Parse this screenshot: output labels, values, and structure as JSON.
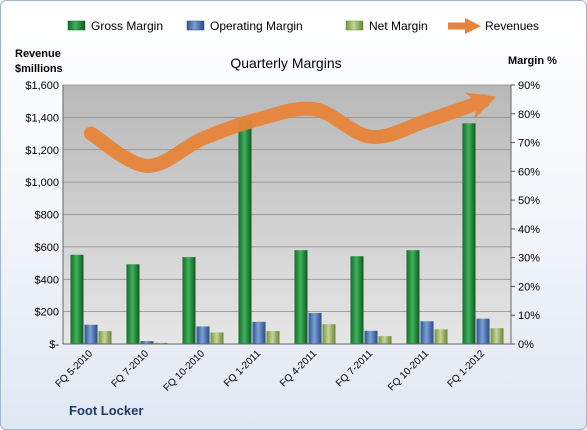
{
  "chart_data": {
    "type": "bar",
    "title": "Quarterly Margins",
    "company": "Foot Locker",
    "categories": [
      "FQ 5-2010",
      "FQ 7-2010",
      "FQ 10-2010",
      "FQ 1-2011",
      "FQ 4-2011",
      "FQ 7-2011",
      "FQ 10-2011",
      "FQ 1-2012"
    ],
    "left_axis": {
      "label_line1": "Revenue",
      "label_line2": "$millions",
      "ylim": [
        0,
        1600
      ],
      "ticks": [
        0,
        200,
        400,
        600,
        800,
        1000,
        1200,
        1400,
        1600
      ],
      "tick_labels": [
        "$-",
        "$200",
        "$400",
        "$600",
        "$800",
        "$1,000",
        "$1,200",
        "$1,400",
        "$1,600"
      ]
    },
    "right_axis": {
      "label": "Margin %",
      "ylim": [
        0,
        90
      ],
      "ticks": [
        0,
        10,
        20,
        30,
        40,
        50,
        60,
        70,
        80,
        90
      ],
      "tick_labels": [
        "0%",
        "10%",
        "20%",
        "30%",
        "40%",
        "50%",
        "60%",
        "70%",
        "80%",
        "90%"
      ]
    },
    "series": [
      {
        "name": "Gross Margin",
        "type": "bar",
        "axis": "right",
        "color": "#1e8a3a",
        "values": [
          31,
          27.7,
          30.2,
          78,
          32.6,
          30.5,
          32.6,
          76.7
        ]
      },
      {
        "name": "Operating Margin",
        "type": "bar",
        "axis": "right",
        "color": "#4a74b8",
        "values": [
          6.7,
          1.0,
          6.1,
          7.7,
          10.8,
          4.6,
          7.9,
          8.8
        ]
      },
      {
        "name": "Net Margin",
        "type": "bar",
        "axis": "right",
        "color": "#9bbb59",
        "values": [
          4.5,
          0.4,
          4.0,
          4.5,
          6.9,
          2.7,
          5.1,
          5.5
        ]
      },
      {
        "name": "Revenues",
        "type": "line",
        "axis": "left",
        "color": "#e8843a",
        "values": [
          1300,
          1100,
          1270,
          1390,
          1450,
          1280,
          1380,
          1500
        ]
      }
    ],
    "grid": true,
    "legend_position": "top"
  }
}
